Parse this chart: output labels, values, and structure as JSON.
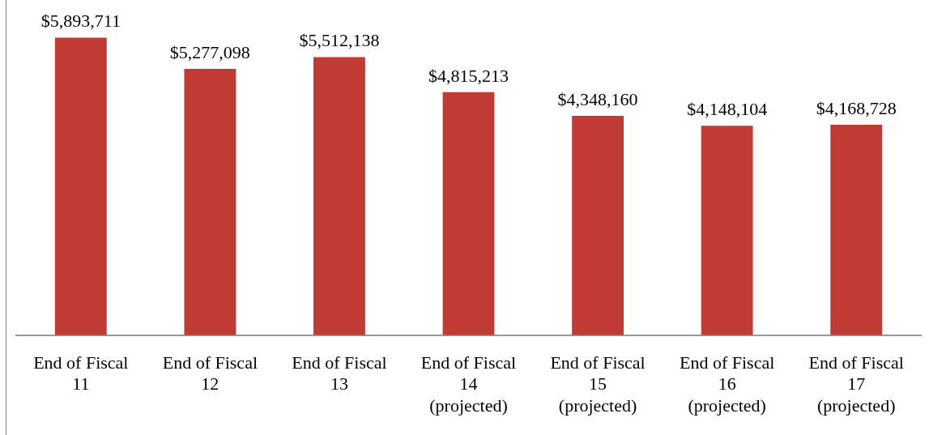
{
  "chart_data": {
    "type": "bar",
    "categories": [
      "End of Fiscal 11",
      "End of Fiscal 12",
      "End of Fiscal 13",
      "End of Fiscal 14 (projected)",
      "End of Fiscal 15 (projected)",
      "End of Fiscal 16 (projected)",
      "End of Fiscal 17 (projected)"
    ],
    "values": [
      5893711,
      5277098,
      5512138,
      4815213,
      4348160,
      4148104,
      4168728
    ],
    "value_labels": [
      "$5,893,711",
      "$5,277,098",
      "$5,512,138",
      "$4,815,213",
      "$4,348,160",
      "$4,148,104",
      "$4,168,728"
    ],
    "color": "#c23a34",
    "grid": false,
    "legend": false
  }
}
